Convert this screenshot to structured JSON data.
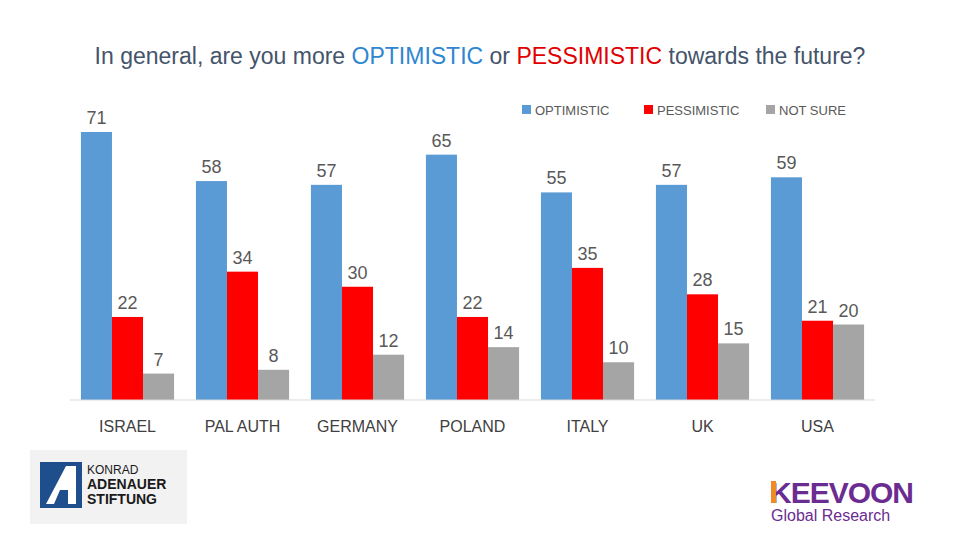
{
  "chart_data": {
    "type": "bar",
    "title": "In general, are you more OPTIMISTIC or PESSIMISTIC towards the future?",
    "categories": [
      "ISRAEL",
      "PAL AUTH",
      "GERMANY",
      "POLAND",
      "ITALY",
      "UK",
      "USA"
    ],
    "series": [
      {
        "name": "OPTIMISTIC",
        "color": "#5b9bd5",
        "values": [
          71,
          58,
          57,
          65,
          55,
          57,
          59
        ]
      },
      {
        "name": "PESSIMISTIC",
        "color": "#ff0000",
        "values": [
          22,
          34,
          30,
          22,
          35,
          28,
          21
        ]
      },
      {
        "name": "NOT SURE",
        "color": "#a5a5a5",
        "values": [
          7,
          8,
          12,
          14,
          10,
          15,
          20
        ]
      }
    ],
    "ylim": [
      0,
      75
    ],
    "tick_labels": "x",
    "grid": false,
    "legend": "top-right",
    "data_labels": true,
    "annotations": [
      "KONRAD",
      "ADENAUER",
      "STIFTUNG",
      "KEEVOON",
      "Global Research"
    ]
  }
}
